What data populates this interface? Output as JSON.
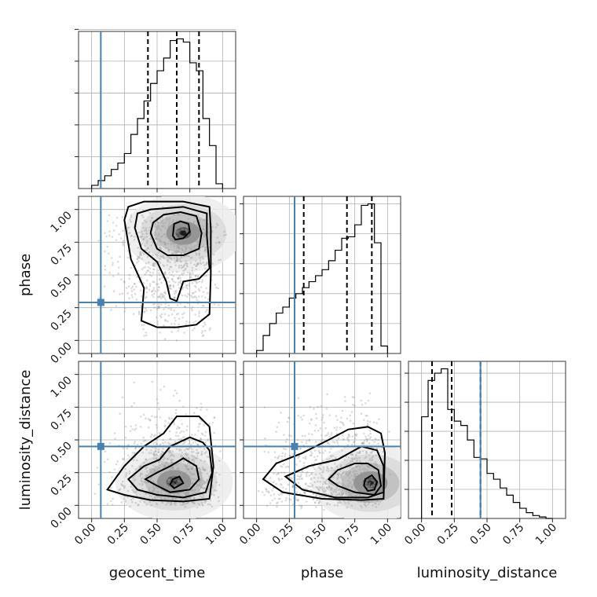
{
  "chart_data": {
    "type": "corner",
    "parameters": [
      "geocent_time",
      "phase",
      "luminosity_distance"
    ],
    "truths": [
      0.07,
      0.29,
      0.45
    ],
    "tick_values": [
      0.0,
      0.25,
      0.5,
      0.75,
      1.0
    ],
    "tick_labels": [
      "0.00",
      "0.25",
      "0.50",
      "0.75",
      "1.00"
    ],
    "axis_ranges": {
      "geocent_time": [
        -0.1,
        1.1
      ],
      "phase": [
        -0.1,
        1.1
      ],
      "luminosity_distance": [
        -0.1,
        1.1
      ]
    },
    "grid": true,
    "colors": {
      "truth": "#4682b4",
      "histogram": "#000000",
      "samples": "#808080"
    },
    "marginals": [
      {
        "parameter": "geocent_time",
        "bin_edges": [
          0.0,
          0.05,
          0.1,
          0.15,
          0.2,
          0.25,
          0.3,
          0.35,
          0.4,
          0.45,
          0.5,
          0.55,
          0.6,
          0.65,
          0.7,
          0.75,
          0.8,
          0.85,
          0.9,
          0.95,
          1.0
        ],
        "counts": [
          0.02,
          0.05,
          0.08,
          0.12,
          0.16,
          0.22,
          0.34,
          0.44,
          0.55,
          0.66,
          0.74,
          0.82,
          0.93,
          0.94,
          0.92,
          0.79,
          0.74,
          0.44,
          0.27,
          0.03
        ],
        "quantiles": [
          0.43,
          0.65,
          0.82
        ]
      },
      {
        "parameter": "phase",
        "bin_edges": [
          0.0,
          0.05,
          0.1,
          0.15,
          0.2,
          0.25,
          0.3,
          0.35,
          0.4,
          0.45,
          0.5,
          0.55,
          0.6,
          0.65,
          0.7,
          0.75,
          0.8,
          0.85,
          0.9,
          0.95,
          1.0
        ],
        "counts": [
          0.02,
          0.12,
          0.2,
          0.27,
          0.31,
          0.37,
          0.4,
          0.44,
          0.48,
          0.52,
          0.56,
          0.62,
          0.69,
          0.77,
          0.78,
          0.86,
          0.99,
          1.0,
          0.74,
          0.05
        ],
        "quantiles": [
          0.36,
          0.69,
          0.88
        ]
      },
      {
        "parameter": "luminosity_distance",
        "bin_edges": [
          0.0,
          0.05,
          0.1,
          0.15,
          0.2,
          0.25,
          0.3,
          0.35,
          0.4,
          0.45,
          0.5,
          0.55,
          0.6,
          0.65,
          0.7,
          0.75,
          0.8,
          0.85,
          0.9,
          0.95,
          1.0
        ],
        "counts": [
          0.7,
          0.95,
          1.0,
          1.03,
          0.75,
          0.67,
          0.64,
          0.54,
          0.42,
          0.41,
          0.31,
          0.27,
          0.21,
          0.16,
          0.11,
          0.07,
          0.04,
          0.02,
          0.01,
          0.0
        ],
        "quantiles": [
          0.08,
          0.23,
          0.45
        ]
      }
    ],
    "joint": [
      {
        "x": "geocent_time",
        "y": "phase",
        "density_peak": [
          0.7,
          0.82
        ],
        "contours": [
          [
            [
              0.62,
              0.8
            ],
            [
              0.64,
              0.77
            ],
            [
              0.7,
              0.78
            ],
            [
              0.75,
              0.83
            ],
            [
              0.74,
              0.89
            ],
            [
              0.68,
              0.91
            ],
            [
              0.63,
              0.89
            ]
          ],
          [
            [
              0.45,
              0.82
            ],
            [
              0.5,
              0.7
            ],
            [
              0.58,
              0.65
            ],
            [
              0.7,
              0.65
            ],
            [
              0.82,
              0.7
            ],
            [
              0.84,
              0.82
            ],
            [
              0.8,
              0.95
            ],
            [
              0.68,
              0.98
            ],
            [
              0.55,
              0.96
            ],
            [
              0.47,
              0.9
            ]
          ],
          [
            [
              0.33,
              0.86
            ],
            [
              0.38,
              0.7
            ],
            [
              0.5,
              0.6
            ],
            [
              0.57,
              0.45
            ],
            [
              0.6,
              0.32
            ],
            [
              0.65,
              0.3
            ],
            [
              0.7,
              0.45
            ],
            [
              0.82,
              0.47
            ],
            [
              0.9,
              0.55
            ],
            [
              0.88,
              0.8
            ],
            [
              0.88,
              0.97
            ],
            [
              0.7,
              1.02
            ],
            [
              0.45,
              1.0
            ],
            [
              0.35,
              0.97
            ]
          ],
          [
            [
              0.25,
              0.92
            ],
            [
              0.3,
              0.62
            ],
            [
              0.4,
              0.4
            ],
            [
              0.38,
              0.15
            ],
            [
              0.5,
              0.1
            ],
            [
              0.65,
              0.1
            ],
            [
              0.8,
              0.12
            ],
            [
              0.9,
              0.2
            ],
            [
              0.91,
              0.5
            ],
            [
              0.91,
              0.85
            ],
            [
              0.9,
              1.02
            ],
            [
              0.7,
              1.06
            ],
            [
              0.4,
              1.06
            ],
            [
              0.28,
              1.02
            ]
          ]
        ]
      },
      {
        "x": "geocent_time",
        "y": "luminosity_distance",
        "density_peak": [
          0.63,
          0.18
        ],
        "contours": [
          [
            [
              0.6,
              0.16
            ],
            [
              0.63,
              0.13
            ],
            [
              0.7,
              0.17
            ],
            [
              0.67,
              0.22
            ],
            [
              0.62,
              0.2
            ]
          ],
          [
            [
              0.41,
              0.2
            ],
            [
              0.48,
              0.16
            ],
            [
              0.6,
              0.1
            ],
            [
              0.75,
              0.12
            ],
            [
              0.82,
              0.2
            ],
            [
              0.8,
              0.3
            ],
            [
              0.7,
              0.36
            ],
            [
              0.6,
              0.3
            ],
            [
              0.5,
              0.25
            ]
          ],
          [
            [
              0.28,
              0.2
            ],
            [
              0.35,
              0.12
            ],
            [
              0.5,
              0.08
            ],
            [
              0.7,
              0.06
            ],
            [
              0.87,
              0.1
            ],
            [
              0.92,
              0.25
            ],
            [
              0.9,
              0.42
            ],
            [
              0.85,
              0.48
            ],
            [
              0.75,
              0.52
            ],
            [
              0.6,
              0.45
            ],
            [
              0.52,
              0.35
            ],
            [
              0.4,
              0.3
            ]
          ],
          [
            [
              0.12,
              0.12
            ],
            [
              0.25,
              0.08
            ],
            [
              0.45,
              0.04
            ],
            [
              0.7,
              0.03
            ],
            [
              0.9,
              0.05
            ],
            [
              0.93,
              0.3
            ],
            [
              0.9,
              0.6
            ],
            [
              0.82,
              0.68
            ],
            [
              0.65,
              0.68
            ],
            [
              0.55,
              0.55
            ],
            [
              0.4,
              0.45
            ],
            [
              0.25,
              0.3
            ]
          ]
        ]
      },
      {
        "x": "phase",
        "y": "luminosity_distance",
        "density_peak": [
          0.87,
          0.17
        ],
        "contours": [
          [
            [
              0.82,
              0.15
            ],
            [
              0.85,
              0.11
            ],
            [
              0.9,
              0.12
            ],
            [
              0.92,
              0.18
            ],
            [
              0.88,
              0.23
            ],
            [
              0.83,
              0.2
            ]
          ],
          [
            [
              0.55,
              0.2
            ],
            [
              0.62,
              0.15
            ],
            [
              0.75,
              0.1
            ],
            [
              0.9,
              0.08
            ],
            [
              0.95,
              0.15
            ],
            [
              0.93,
              0.27
            ],
            [
              0.85,
              0.32
            ],
            [
              0.75,
              0.32
            ],
            [
              0.62,
              0.27
            ]
          ],
          [
            [
              0.22,
              0.22
            ],
            [
              0.35,
              0.12
            ],
            [
              0.6,
              0.06
            ],
            [
              0.85,
              0.06
            ],
            [
              0.97,
              0.1
            ],
            [
              0.97,
              0.3
            ],
            [
              0.92,
              0.42
            ],
            [
              0.8,
              0.45
            ],
            [
              0.62,
              0.35
            ],
            [
              0.4,
              0.3
            ]
          ],
          [
            [
              0.05,
              0.2
            ],
            [
              0.2,
              0.1
            ],
            [
              0.5,
              0.05
            ],
            [
              0.8,
              0.04
            ],
            [
              0.97,
              0.05
            ],
            [
              0.98,
              0.4
            ],
            [
              0.95,
              0.55
            ],
            [
              0.85,
              0.6
            ],
            [
              0.7,
              0.58
            ],
            [
              0.55,
              0.5
            ],
            [
              0.35,
              0.4
            ],
            [
              0.15,
              0.32
            ]
          ]
        ]
      }
    ]
  }
}
